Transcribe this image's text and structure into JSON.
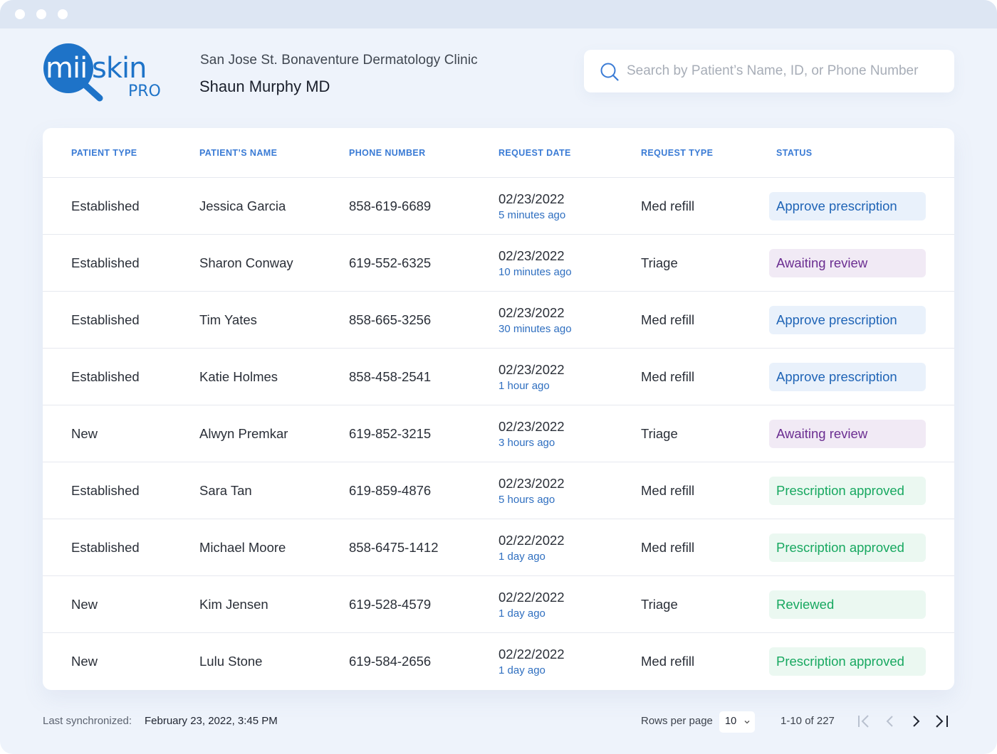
{
  "window": {
    "controls": [
      "close",
      "minimize",
      "maximize"
    ]
  },
  "brand": {
    "logo_text": "miiskin",
    "logo_sub": "PRO",
    "primary_color": "#1e73c8"
  },
  "header": {
    "clinic_name": "San Jose St. Bonaventure Dermatology Clinic",
    "doctor_name": "Shaun Murphy MD"
  },
  "search": {
    "icon": "search-icon",
    "placeholder": "Search by Patient’s Name, ID, or Phone Number",
    "value": ""
  },
  "table": {
    "columns": {
      "patient_type": "PATIENT TYPE",
      "patient_name": "PATIENT’S NAME",
      "phone": "PHONE NUMBER",
      "request_date": "REQUEST DATE",
      "request_type": "REQUEST TYPE",
      "status": "STATUS"
    },
    "rows": [
      {
        "patient_type": "Established",
        "name": "Jessica Garcia",
        "phone": "858-619-6689",
        "date": "02/23/2022",
        "ago": "5 minutes ago",
        "request_type": "Med refill",
        "status": "Approve prescription",
        "status_kind": "approve"
      },
      {
        "patient_type": "Established",
        "name": "Sharon Conway",
        "phone": "619-552-6325",
        "date": "02/23/2022",
        "ago": "10 minutes ago",
        "request_type": "Triage",
        "status": "Awaiting review",
        "status_kind": "awaiting"
      },
      {
        "patient_type": "Established",
        "name": "Tim Yates",
        "phone": "858-665-3256",
        "date": "02/23/2022",
        "ago": "30 minutes ago",
        "request_type": "Med refill",
        "status": "Approve prescription",
        "status_kind": "approve"
      },
      {
        "patient_type": "Established",
        "name": "Katie Holmes",
        "phone": "858-458-2541",
        "date": "02/23/2022",
        "ago": "1 hour ago",
        "request_type": "Med refill",
        "status": "Approve prescription",
        "status_kind": "approve"
      },
      {
        "patient_type": "New",
        "name": "Alwyn Premkar",
        "phone": "619-852-3215",
        "date": "02/23/2022",
        "ago": "3 hours ago",
        "request_type": "Triage",
        "status": "Awaiting review",
        "status_kind": "awaiting"
      },
      {
        "patient_type": "Established",
        "name": "Sara Tan",
        "phone": "619-859-4876",
        "date": "02/23/2022",
        "ago": "5 hours ago",
        "request_type": "Med refill",
        "status": "Prescription approved",
        "status_kind": "approved"
      },
      {
        "patient_type": "Established",
        "name": "Michael Moore",
        "phone": "858-6475-1412",
        "date": "02/22/2022",
        "ago": "1 day ago",
        "request_type": "Med refill",
        "status": "Prescription approved",
        "status_kind": "approved"
      },
      {
        "patient_type": "New",
        "name": "Kim Jensen",
        "phone": "619-528-4579",
        "date": "02/22/2022",
        "ago": "1 day ago",
        "request_type": "Triage",
        "status": "Reviewed",
        "status_kind": "reviewed"
      },
      {
        "patient_type": "New",
        "name": "Lulu Stone",
        "phone": "619-584-2656",
        "date": "02/22/2022",
        "ago": "1 day ago",
        "request_type": "Med refill",
        "status": "Prescription approved",
        "status_kind": "approved"
      }
    ]
  },
  "footer": {
    "sync_label": "Last synchronized:",
    "sync_value": "February 23, 2022, 3:45 PM",
    "rows_per_page_label": "Rows per page",
    "rows_per_page_value": "10",
    "range": "1-10 of 227",
    "pagination_icons": [
      "first-page-icon",
      "previous-page-icon",
      "next-page-icon",
      "last-page-icon"
    ]
  },
  "colors": {
    "approve_bg": "#e9f1fb",
    "approve_text": "#1f64b6",
    "awaiting_bg": "#f1eaf5",
    "awaiting_text": "#6b2e91",
    "approved_bg": "#ebf8f1",
    "approved_text": "#17a860"
  }
}
